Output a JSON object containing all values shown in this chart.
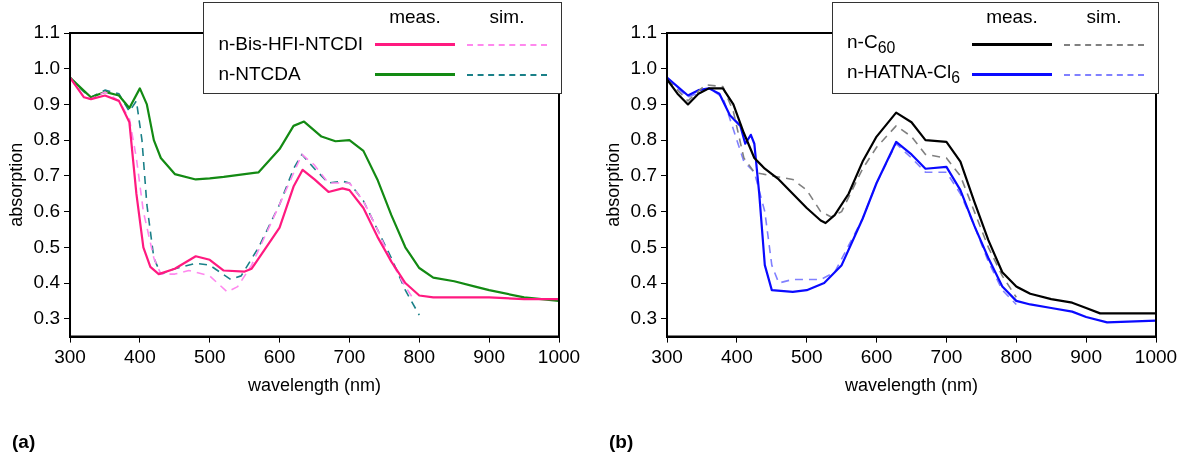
{
  "chart_data": [
    {
      "type": "line",
      "xlabel": "wavelength (nm)",
      "ylabel": "absorption",
      "xlim": [
        300,
        1000
      ],
      "xticks": [
        300,
        400,
        500,
        600,
        700,
        800,
        900,
        1000
      ],
      "ylim": [
        0.25,
        1.1
      ],
      "yticks": [
        0.3,
        0.4,
        0.5,
        0.6,
        0.7,
        0.8,
        0.9,
        {
          "value": 1,
          "label": "1.0"
        },
        1.1
      ],
      "legend": "top right",
      "marker": "none",
      "annotations": [
        "meas.",
        "sim.",
        "(a)"
      ],
      "series": [
        {
          "name": "n-Bis-HFI-NTCDI",
          "color": "#ff1a80",
          "line_style": "solid",
          "x": [
            300,
            320,
            330,
            350,
            370,
            385,
            395,
            405,
            415,
            427,
            450,
            480,
            500,
            520,
            550,
            560,
            600,
            620,
            633,
            650,
            670,
            690,
            700,
            720,
            740,
            760,
            780,
            800,
            820,
            900,
            950,
            1000
          ],
          "values": [
            0.975,
            0.92,
            0.915,
            0.925,
            0.91,
            0.85,
            0.65,
            0.5,
            0.445,
            0.425,
            0.44,
            0.475,
            0.465,
            0.435,
            0.432,
            0.44,
            0.555,
            0.67,
            0.717,
            0.69,
            0.655,
            0.665,
            0.66,
            0.61,
            0.53,
            0.46,
            0.4,
            0.365,
            0.36,
            0.36,
            0.355,
            0.355
          ]
        },
        {
          "color": "#ff88ee",
          "line_style": "dashed",
          "x": [
            300,
            320,
            330,
            350,
            370,
            385,
            395,
            405,
            420,
            430,
            450,
            470,
            500,
            525,
            540,
            560,
            600,
            632,
            650,
            670,
            700,
            720,
            740,
            760,
            780,
            790
          ],
          "values": [
            0.975,
            0.92,
            0.915,
            0.935,
            0.91,
            0.86,
            0.75,
            0.6,
            0.47,
            0.425,
            0.425,
            0.435,
            0.42,
            0.375,
            0.39,
            0.45,
            0.62,
            0.76,
            0.73,
            0.68,
            0.68,
            0.63,
            0.55,
            0.46,
            0.39,
            0.36
          ]
        },
        {
          "name": "n-NTCDA",
          "color": "#138a13",
          "line_style": "solid",
          "x": [
            300,
            320,
            330,
            350,
            370,
            385,
            400,
            410,
            420,
            430,
            450,
            480,
            500,
            520,
            550,
            570,
            600,
            620,
            635,
            660,
            680,
            700,
            720,
            740,
            760,
            780,
            800,
            820,
            850,
            880,
            900,
            950,
            1000
          ],
          "values": [
            0.975,
            0.938,
            0.92,
            0.935,
            0.925,
            0.89,
            0.945,
            0.9,
            0.8,
            0.75,
            0.705,
            0.69,
            0.693,
            0.697,
            0.705,
            0.71,
            0.775,
            0.84,
            0.852,
            0.81,
            0.797,
            0.8,
            0.77,
            0.69,
            0.59,
            0.5,
            0.442,
            0.415,
            0.405,
            0.39,
            0.38,
            0.36,
            0.35
          ]
        },
        {
          "color": "#1a8088",
          "line_style": "dashed",
          "x": [
            300,
            320,
            330,
            350,
            370,
            385,
            395,
            403,
            410,
            420,
            430,
            450,
            480,
            500,
            530,
            545,
            570,
            600,
            620,
            632,
            650,
            670,
            690,
            700,
            720,
            740,
            760,
            780,
            800
          ],
          "values": [
            0.975,
            0.935,
            0.92,
            0.94,
            0.93,
            0.88,
            0.91,
            0.8,
            0.62,
            0.47,
            0.425,
            0.44,
            0.455,
            0.45,
            0.41,
            0.42,
            0.5,
            0.62,
            0.72,
            0.76,
            0.72,
            0.68,
            0.685,
            0.68,
            0.63,
            0.55,
            0.47,
            0.38,
            0.31
          ]
        }
      ]
    },
    {
      "type": "line",
      "xlabel": "wavelength (nm)",
      "ylabel": "absorption",
      "xlim": [
        300,
        1000
      ],
      "xticks": [
        300,
        400,
        500,
        600,
        700,
        800,
        900,
        1000
      ],
      "ylim": [
        0.25,
        1.1
      ],
      "yticks": [
        0.3,
        0.4,
        0.5,
        0.6,
        0.7,
        0.8,
        0.9,
        {
          "value": 1,
          "label": "1.0"
        },
        1.1
      ],
      "legend": "top right",
      "marker": "none",
      "annotations": [
        "meas.",
        "sim.",
        "(b)"
      ],
      "series": [
        {
          "name": "n-C$_{60}$",
          "color": "#000000",
          "line_style": "solid",
          "x": [
            300,
            315,
            330,
            345,
            360,
            380,
            395,
            410,
            425,
            440,
            460,
            480,
            500,
            520,
            527,
            540,
            560,
            580,
            600,
            628,
            650,
            670,
            700,
            720,
            740,
            760,
            780,
            800,
            820,
            850,
            880,
            900,
            920,
            950,
            1000
          ],
          "values": [
            0.97,
            0.93,
            0.9,
            0.93,
            0.945,
            0.945,
            0.9,
            0.82,
            0.75,
            0.72,
            0.69,
            0.65,
            0.61,
            0.575,
            0.568,
            0.59,
            0.65,
            0.74,
            0.81,
            0.877,
            0.85,
            0.8,
            0.795,
            0.74,
            0.627,
            0.52,
            0.43,
            0.39,
            0.37,
            0.355,
            0.345,
            0.33,
            0.315,
            0.315,
            0.315
          ]
        },
        {
          "color": "#808080",
          "line_style": "dashed",
          "x": [
            300,
            330,
            355,
            380,
            395,
            410,
            425,
            450,
            480,
            500,
            520,
            535,
            550,
            580,
            600,
            628,
            650,
            670,
            700,
            720,
            740,
            760,
            780,
            800
          ],
          "values": [
            0.97,
            0.91,
            0.955,
            0.95,
            0.88,
            0.75,
            0.71,
            0.7,
            0.69,
            0.66,
            0.6,
            0.585,
            0.6,
            0.72,
            0.78,
            0.84,
            0.81,
            0.76,
            0.75,
            0.7,
            0.6,
            0.5,
            0.42,
            0.36
          ]
        },
        {
          "name": "n-HATNA-Cl$_{6}$",
          "color": "#0a0aff",
          "line_style": "solid",
          "x": [
            300,
            315,
            330,
            345,
            360,
            375,
            390,
            405,
            412,
            420,
            425,
            432,
            440,
            450,
            480,
            500,
            525,
            550,
            580,
            600,
            628,
            650,
            670,
            700,
            720,
            740,
            760,
            780,
            800,
            820,
            850,
            880,
            900,
            930,
            1000
          ],
          "values": [
            0.975,
            0.95,
            0.925,
            0.94,
            0.945,
            0.93,
            0.87,
            0.84,
            0.79,
            0.815,
            0.79,
            0.65,
            0.45,
            0.38,
            0.375,
            0.38,
            0.4,
            0.45,
            0.58,
            0.68,
            0.795,
            0.76,
            0.72,
            0.725,
            0.66,
            0.56,
            0.47,
            0.39,
            0.35,
            0.34,
            0.33,
            0.32,
            0.305,
            0.29,
            0.295
          ]
        },
        {
          "color": "#8080ff",
          "line_style": "dashed",
          "x": [
            300,
            330,
            360,
            380,
            400,
            410,
            425,
            440,
            450,
            460,
            480,
            520,
            540,
            580,
            600,
            628,
            650,
            670,
            700,
            720,
            740,
            760,
            780,
            800
          ],
          "values": [
            0.97,
            0.92,
            0.945,
            0.92,
            0.8,
            0.74,
            0.71,
            0.6,
            0.45,
            0.4,
            0.41,
            0.41,
            0.43,
            0.58,
            0.68,
            0.79,
            0.75,
            0.71,
            0.71,
            0.65,
            0.56,
            0.46,
            0.38,
            0.34
          ]
        }
      ]
    }
  ]
}
